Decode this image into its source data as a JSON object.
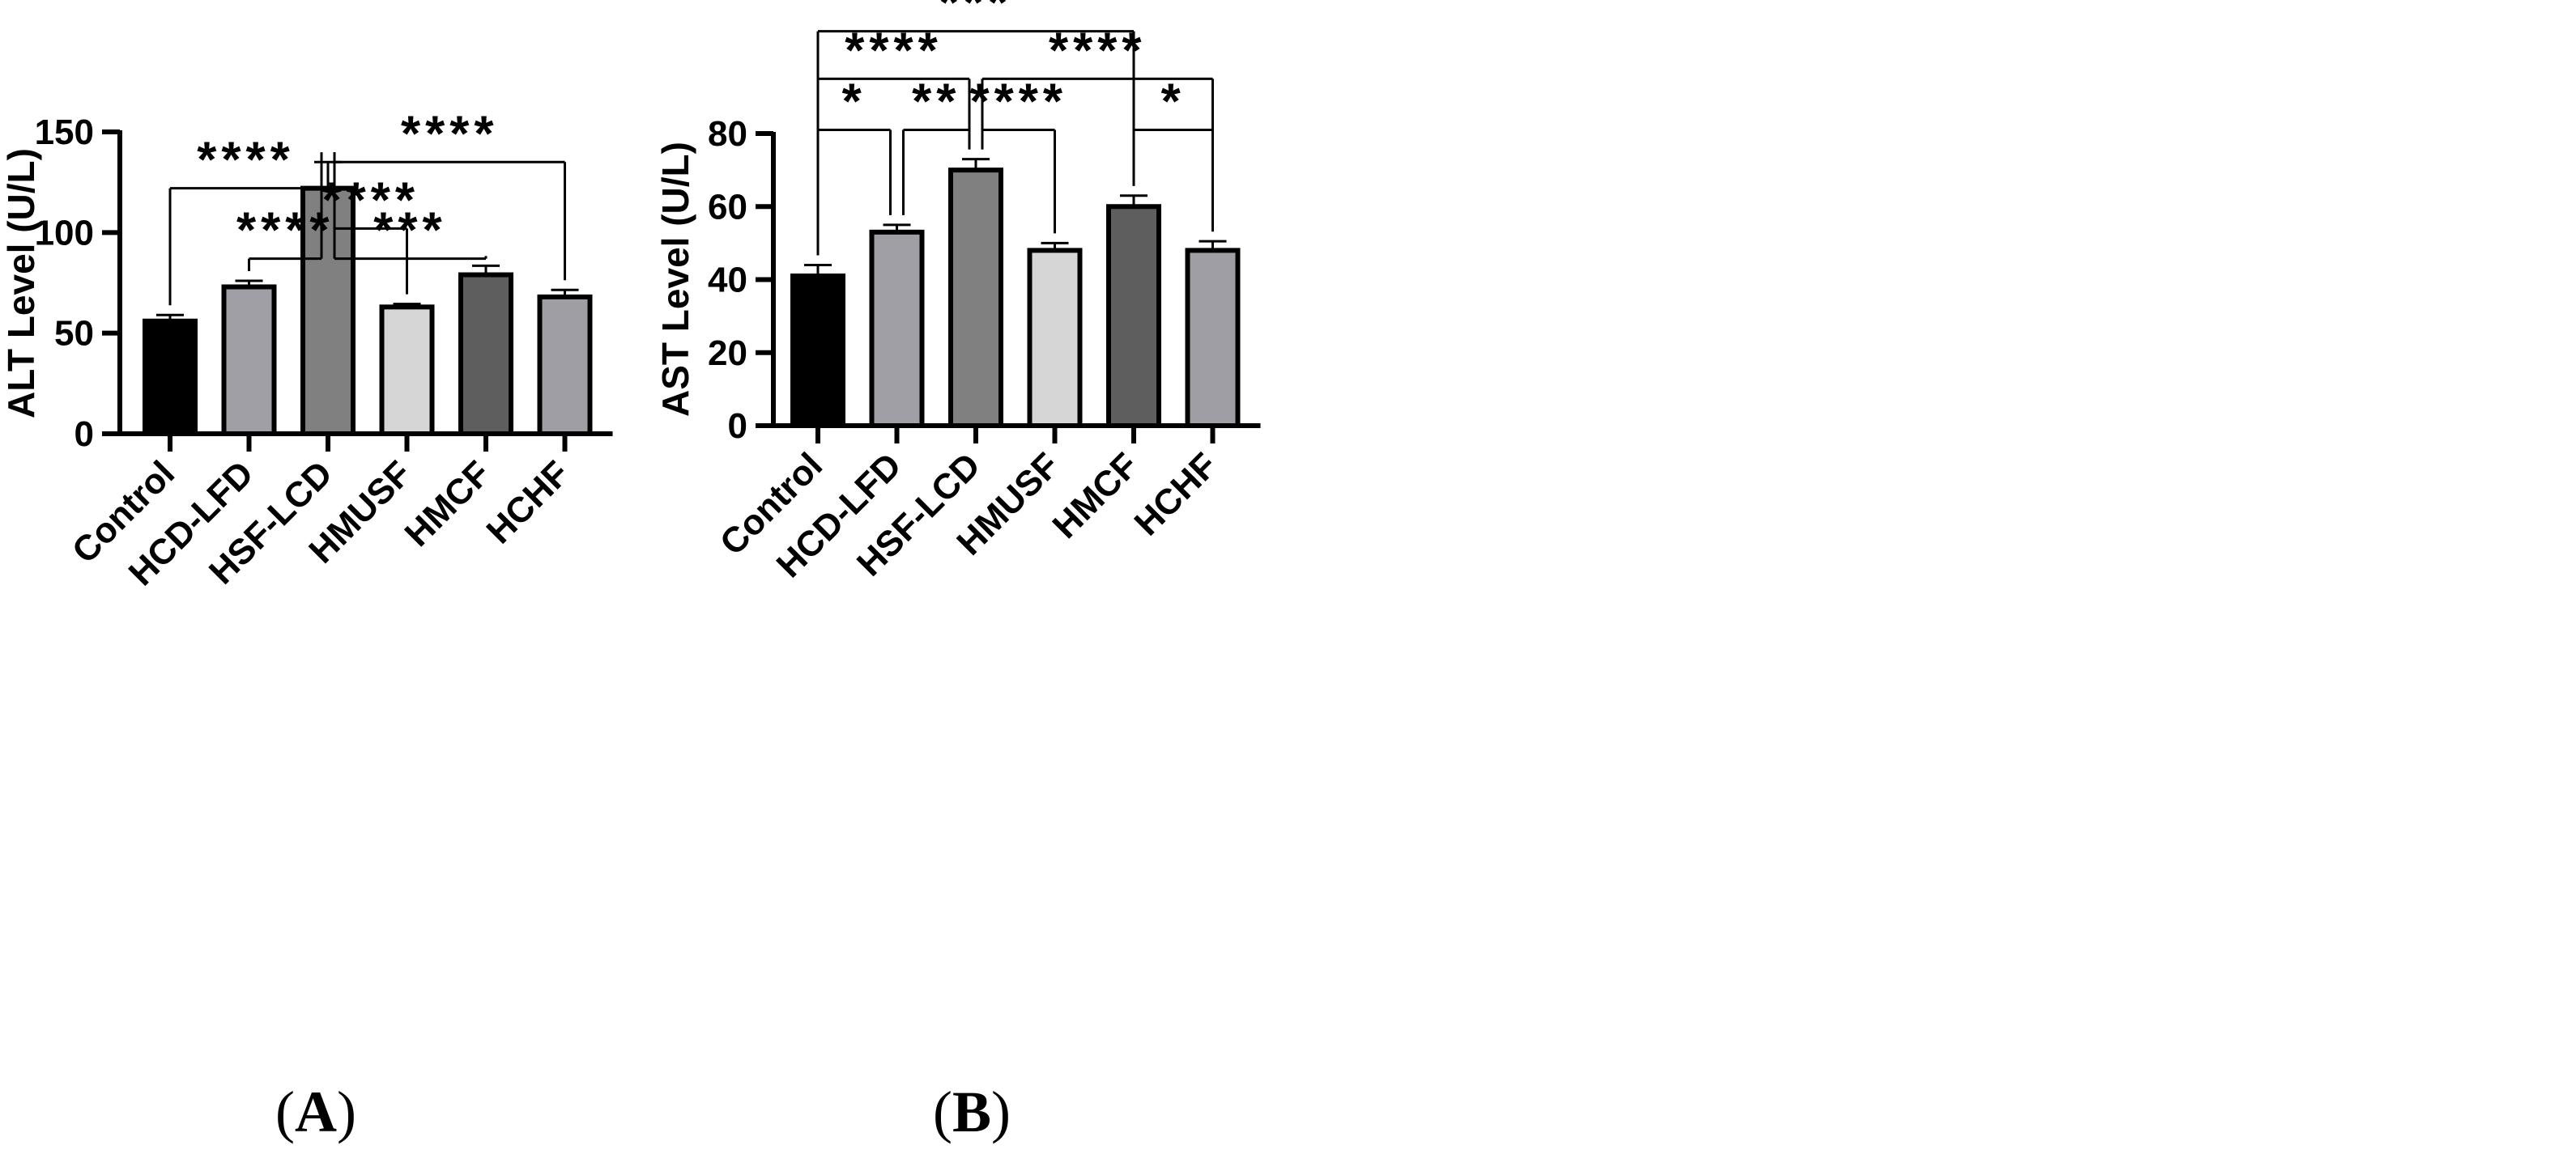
{
  "chart_data": [
    {
      "type": "bar",
      "panel_label": "A",
      "ylabel": "ALT Level (U/L)",
      "ylim": [
        0,
        150
      ],
      "yticks": [
        0,
        50,
        100,
        150
      ],
      "categories": [
        "Control",
        "HCD-LFD",
        "HSF-LCD",
        "HMUSF",
        "HMCF",
        "HCHF"
      ],
      "values": [
        56,
        73,
        122,
        63,
        79,
        68
      ],
      "errors": [
        3,
        3,
        13,
        1.5,
        4.5,
        3.5
      ],
      "colors": [
        "#000000",
        "#a09fa5",
        "#808080",
        "#d6d6d6",
        "#5e5e5e",
        "#9f9ea5"
      ],
      "comparisons": [
        {
          "from": 0,
          "to": 2,
          "label": "****",
          "level": 122,
          "drop_to": 2
        },
        {
          "from": 2,
          "to": 5,
          "label": "****",
          "level": 135,
          "drop_to": 5
        },
        {
          "from": 2,
          "to": 3,
          "label": "****",
          "level": 102,
          "drop_to": 3
        },
        {
          "from": 1,
          "to": 2,
          "label": "****",
          "level": 87,
          "drop_to": 1
        },
        {
          "from": 2,
          "to": 4,
          "label": "***",
          "level": 87,
          "drop_to": 4
        }
      ]
    },
    {
      "type": "bar",
      "panel_label": "B",
      "ylabel": "AST Level (U/L)",
      "ylim": [
        0,
        80
      ],
      "yticks": [
        0,
        20,
        40,
        60,
        80
      ],
      "categories": [
        "Control",
        "HCD-LFD",
        "HSF-LCD",
        "HMUSF",
        "HMCF",
        "HCHF"
      ],
      "values": [
        41,
        53,
        70,
        48,
        60,
        48
      ],
      "errors": [
        3,
        2,
        3,
        2,
        3,
        2.5
      ],
      "colors": [
        "#000000",
        "#a09fa5",
        "#808080",
        "#d6d6d6",
        "#5e5e5e",
        "#9f9ea5"
      ],
      "comparisons": [
        {
          "from": 0,
          "to": 4,
          "label": "***",
          "level": 108
        },
        {
          "from": 0,
          "to": 2,
          "label": "****",
          "level": 95
        },
        {
          "from": 2,
          "to": 5,
          "label": "****",
          "level": 95
        },
        {
          "from": 0,
          "to": 1,
          "label": "*",
          "level": 81
        },
        {
          "from": 1,
          "to": 2,
          "label": "**",
          "level": 81
        },
        {
          "from": 2,
          "to": 3,
          "label": "****",
          "level": 81
        },
        {
          "from": 4,
          "to": 5,
          "label": "*",
          "level": 81
        }
      ]
    }
  ]
}
